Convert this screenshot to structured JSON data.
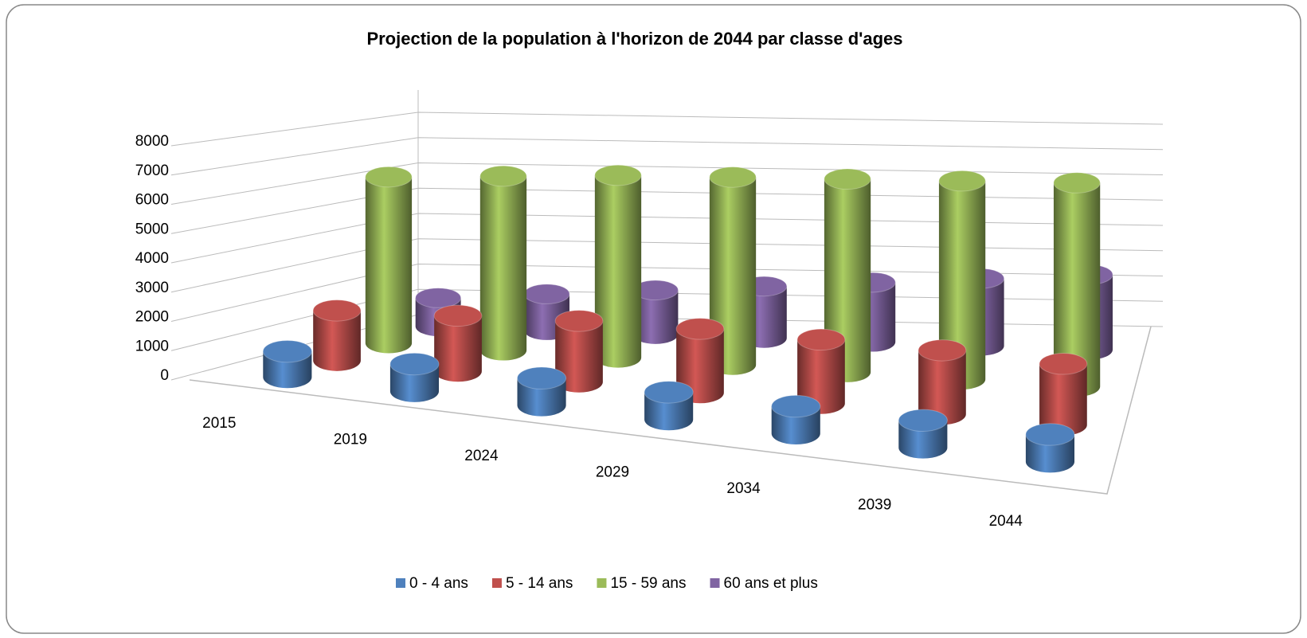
{
  "chart_data": {
    "type": "cylinder3d",
    "title": "Projection de la population à l'horizon de 2044 par classe d'ages",
    "categories": [
      "2015",
      "2019",
      "2024",
      "2029",
      "2034",
      "2039",
      "2044"
    ],
    "series": [
      {
        "name": "0 - 4 ans",
        "color": "#4f81bd",
        "values": [
          900,
          950,
          950,
          950,
          950,
          950,
          950
        ]
      },
      {
        "name": "5 - 14 ans",
        "color": "#c0504d",
        "values": [
          1800,
          2000,
          2200,
          2300,
          2300,
          2300,
          2200
        ]
      },
      {
        "name": "15 - 59 ans",
        "color": "#9bbb59",
        "values": [
          6200,
          6500,
          6800,
          7000,
          7200,
          7400,
          7600
        ]
      },
      {
        "name": "60 ans et plus",
        "color": "#8064a2",
        "values": [
          1100,
          1400,
          1700,
          2000,
          2300,
          2600,
          2900
        ]
      }
    ],
    "ylim": [
      0,
      8000
    ],
    "yticks": [
      0,
      1000,
      2000,
      3000,
      4000,
      5000,
      6000,
      7000,
      8000
    ],
    "grid": true,
    "legend": "bottom"
  }
}
